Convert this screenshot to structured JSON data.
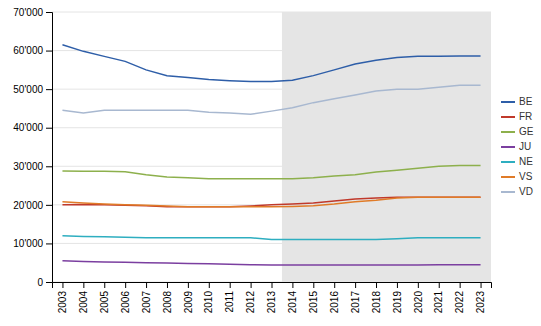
{
  "chart_data": {
    "type": "line",
    "x": [
      2003,
      2004,
      2005,
      2006,
      2007,
      2008,
      2009,
      2010,
      2011,
      2012,
      2013,
      2014,
      2015,
      2016,
      2017,
      2018,
      2019,
      2020,
      2021,
      2022,
      2023
    ],
    "xlim": [
      2002.5,
      2023.5
    ],
    "xticks": [
      2003,
      2004,
      2005,
      2006,
      2007,
      2008,
      2009,
      2010,
      2011,
      2012,
      2013,
      2014,
      2015,
      2016,
      2017,
      2018,
      2019,
      2020,
      2021,
      2022,
      2023
    ],
    "ylim": [
      0,
      70000
    ],
    "yticks": [
      0,
      {
        "value": 10000,
        "label": "10'000"
      },
      {
        "value": 20000,
        "label": "20'000"
      },
      {
        "value": 30000,
        "label": "30'000"
      },
      {
        "value": 40000,
        "label": "40'000"
      },
      {
        "value": 50000,
        "label": "50'000"
      },
      {
        "value": 60000,
        "label": "60'000"
      },
      {
        "value": 70000,
        "label": "70'000"
      }
    ],
    "grid": true,
    "legend": "right",
    "shaded": {
      "x": [
        2013.5,
        2023.5
      ],
      "color": "#e5e5e5"
    },
    "series": [
      {
        "name": "BE",
        "color": "#2E5EA8",
        "values": [
          61500,
          59800,
          58500,
          57200,
          55000,
          53500,
          53000,
          52500,
          52200,
          52000,
          52000,
          52300,
          53500,
          55000,
          56500,
          57500,
          58200,
          58500,
          58500,
          58600,
          58600
        ]
      },
      {
        "name": "FR",
        "color": "#C0392B",
        "values": [
          20000,
          20100,
          20000,
          19900,
          19800,
          19500,
          19500,
          19500,
          19500,
          19700,
          20000,
          20200,
          20500,
          21000,
          21500,
          21800,
          22000,
          22000,
          22000,
          22000,
          22000
        ]
      },
      {
        "name": "GE",
        "color": "#8DB04C",
        "values": [
          28800,
          28700,
          28700,
          28600,
          27800,
          27200,
          27000,
          26800,
          26800,
          26800,
          26800,
          26800,
          27000,
          27500,
          27800,
          28500,
          29000,
          29500,
          30000,
          30200,
          30200
        ]
      },
      {
        "name": "JU",
        "color": "#7B3FA0",
        "values": [
          5500,
          5300,
          5200,
          5100,
          5000,
          4900,
          4800,
          4700,
          4600,
          4500,
          4400,
          4400,
          4400,
          4400,
          4400,
          4400,
          4400,
          4400,
          4500,
          4500,
          4500
        ]
      },
      {
        "name": "NE",
        "color": "#2EAEC0",
        "values": [
          12000,
          11800,
          11700,
          11600,
          11500,
          11500,
          11500,
          11500,
          11500,
          11500,
          11000,
          11000,
          11000,
          11000,
          11000,
          11000,
          11200,
          11500,
          11500,
          11500,
          11500
        ]
      },
      {
        "name": "VS",
        "color": "#E07B28",
        "values": [
          20800,
          20500,
          20200,
          20000,
          19900,
          19700,
          19500,
          19500,
          19500,
          19500,
          19500,
          19600,
          19800,
          20200,
          20800,
          21200,
          21800,
          22000,
          22000,
          22000,
          22000
        ]
      },
      {
        "name": "VD",
        "color": "#A8B8D0",
        "values": [
          44500,
          43800,
          44500,
          44500,
          44500,
          44500,
          44500,
          44000,
          43800,
          43500,
          44300,
          45200,
          46500,
          47500,
          48500,
          49500,
          50000,
          50000,
          50500,
          51000,
          51000
        ]
      }
    ]
  }
}
